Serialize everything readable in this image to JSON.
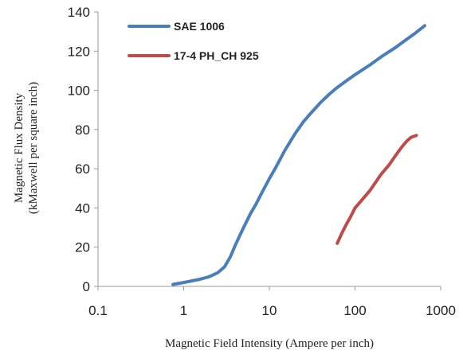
{
  "chart_data": {
    "type": "line",
    "title": "",
    "xlabel": "Magnetic Field Intensity (Ampere per inch)",
    "ylabel_line1": "Magnetic Flux Density",
    "ylabel_line2": "(kMaxwell per square inch)",
    "x_scale": "log",
    "xlim": [
      0.1,
      1000
    ],
    "ylim": [
      0,
      140
    ],
    "x_ticks": [
      0.1,
      1,
      10,
      100,
      1000
    ],
    "x_tick_labels": [
      "0.1",
      "1",
      "10",
      "100",
      "1000"
    ],
    "y_ticks": [
      0,
      20,
      40,
      60,
      80,
      100,
      120,
      140
    ],
    "y_tick_labels": [
      "0",
      "20",
      "40",
      "60",
      "80",
      "100",
      "120",
      "140"
    ],
    "grid": false,
    "legend_position": "top-left",
    "series": [
      {
        "name": "SAE 1006",
        "color": "#4a7ebb",
        "x": [
          0.75,
          1.0,
          1.5,
          2.0,
          2.5,
          3.0,
          3.5,
          4.0,
          5.0,
          6.0,
          7.0,
          8.0,
          10.0,
          12.0,
          15.0,
          20.0,
          25.0,
          30.0,
          40.0,
          50.0,
          60.0,
          80.0,
          100.0,
          150.0,
          200.0,
          300.0,
          400.0,
          500.0,
          650.0
        ],
        "y": [
          1,
          2,
          3.5,
          5,
          7,
          10,
          15,
          21,
          30,
          37,
          42,
          47,
          55,
          61,
          69,
          78,
          84,
          88,
          94,
          98,
          101,
          105,
          108,
          113,
          117,
          122,
          126,
          129,
          133
        ]
      },
      {
        "name": "17-4 PH_CH 925",
        "color": "#be4b48",
        "x": [
          62.0,
          70.0,
          80.0,
          90.0,
          100.0,
          120.0,
          150.0,
          180.0,
          200.0,
          250.0,
          300.0,
          350.0,
          400.0,
          450.0,
          520.0
        ],
        "y": [
          22,
          27,
          32,
          36,
          40,
          44,
          49,
          54,
          57,
          62,
          67,
          71,
          74,
          76,
          77
        ]
      }
    ]
  }
}
